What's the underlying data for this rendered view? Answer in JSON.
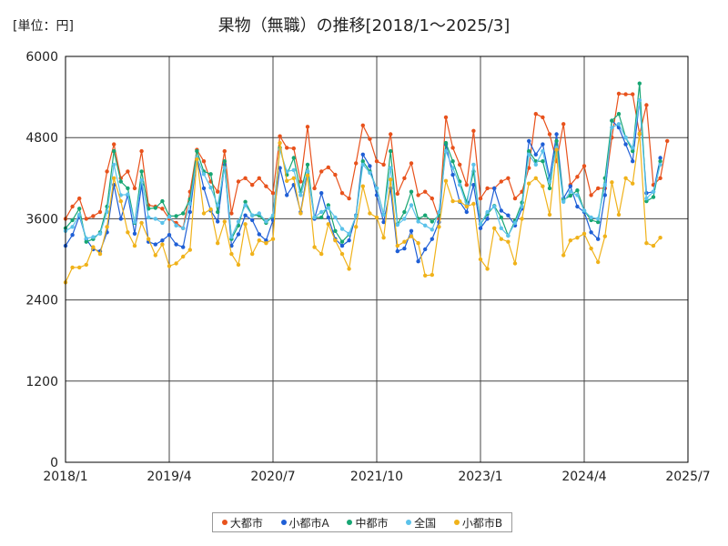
{
  "chart_data": {
    "type": "line",
    "title": "果物（無職）の推移[2018/1～2025/3]",
    "unit_label": "[単位：円]",
    "xlabel": "",
    "ylabel": "",
    "ylim": [
      0,
      6000
    ],
    "yticks": [
      "0",
      "1200",
      "2400",
      "3600",
      "4800",
      "6000"
    ],
    "xticks": [
      "2018/1",
      "2019/4",
      "2020/7",
      "2021/10",
      "2023/1",
      "2024/4",
      "2025/7"
    ],
    "grid": true,
    "legend_position": "bottom",
    "x_start": "2018-01",
    "series": [
      {
        "name": "大都市",
        "color": "#e8521c",
        "values": [
          3600,
          3780,
          3900,
          3600,
          3640,
          3700,
          4300,
          4700,
          4200,
          4300,
          4050,
          4600,
          3800,
          3780,
          3750,
          3600,
          3540,
          3460,
          4000,
          4620,
          4450,
          4150,
          4000,
          4600,
          3680,
          4150,
          4200,
          4100,
          4200,
          4080,
          3980,
          4820,
          4650,
          4640,
          4150,
          4960,
          4050,
          4300,
          4360,
          4250,
          3980,
          3900,
          4420,
          4980,
          4780,
          4450,
          4400,
          4850,
          3970,
          4200,
          4420,
          3950,
          4000,
          3900,
          3600,
          5100,
          4650,
          4400,
          4100,
          4900,
          3900,
          4050,
          4050,
          4150,
          4200,
          3900,
          4000,
          4350,
          5150,
          5100,
          4850,
          4450,
          5000,
          4100,
          4220,
          4380,
          3950,
          4050,
          4050,
          4800,
          5450,
          5440,
          5440,
          4850,
          5280,
          4100,
          4200,
          4750
        ]
      },
      {
        "name": "小都市A",
        "color": "#1f5fd6",
        "values": [
          3200,
          3360,
          3640,
          3300,
          3150,
          3120,
          3400,
          4100,
          3600,
          3950,
          3380,
          4100,
          3260,
          3220,
          3280,
          3360,
          3220,
          3180,
          3700,
          4500,
          4050,
          3720,
          3560,
          4400,
          3200,
          3370,
          3650,
          3580,
          3370,
          3280,
          3580,
          4350,
          3950,
          4100,
          3700,
          4300,
          3600,
          3980,
          3620,
          3300,
          3200,
          3280,
          3650,
          4550,
          4380,
          3950,
          3550,
          4050,
          3120,
          3160,
          3420,
          2970,
          3150,
          3300,
          3550,
          4700,
          4250,
          3850,
          3700,
          4100,
          3460,
          3600,
          4050,
          3720,
          3650,
          3500,
          3750,
          4750,
          4550,
          4700,
          4200,
          4850,
          3900,
          4080,
          3780,
          3700,
          3400,
          3300,
          3950,
          5050,
          4950,
          4700,
          4450,
          5350,
          3980,
          4000,
          4500
        ]
      },
      {
        "name": "中都市",
        "color": "#17a673",
        "values": [
          3460,
          3580,
          3750,
          3260,
          3300,
          3400,
          3780,
          4600,
          4150,
          4050,
          3540,
          4300,
          3750,
          3760,
          3860,
          3640,
          3640,
          3680,
          3890,
          4600,
          4300,
          4260,
          3700,
          4450,
          3300,
          3500,
          3850,
          3650,
          3650,
          3540,
          3640,
          4650,
          4250,
          4500,
          4000,
          4400,
          3620,
          3620,
          3800,
          3420,
          3260,
          3370,
          3640,
          4450,
          4300,
          4050,
          3660,
          4600,
          3520,
          3700,
          4000,
          3600,
          3650,
          3560,
          3650,
          4720,
          4450,
          4150,
          3850,
          4300,
          3520,
          3670,
          3790,
          3620,
          3350,
          3570,
          3840,
          4600,
          4450,
          4450,
          4050,
          4750,
          3880,
          3940,
          4020,
          3720,
          3580,
          3550,
          4200,
          5050,
          5150,
          4800,
          4600,
          5600,
          3860,
          3920,
          4450
        ]
      },
      {
        "name": "全国",
        "color": "#5bc2ea",
        "values": [
          3420,
          3480,
          3660,
          3310,
          3330,
          3380,
          3700,
          4400,
          3950,
          3960,
          3550,
          4170,
          3620,
          3600,
          3540,
          3630,
          3500,
          3460,
          3820,
          4500,
          4260,
          4060,
          3800,
          4350,
          3330,
          3560,
          3800,
          3650,
          3680,
          3560,
          3650,
          4620,
          4300,
          4320,
          3950,
          4300,
          3620,
          3700,
          3760,
          3620,
          3450,
          3380,
          3640,
          4400,
          4280,
          4050,
          3660,
          4350,
          3510,
          3600,
          3800,
          3560,
          3500,
          3440,
          3700,
          4600,
          4350,
          4100,
          3800,
          4400,
          3520,
          3700,
          3780,
          3460,
          3350,
          3540,
          3780,
          4550,
          4400,
          4600,
          4150,
          4650,
          3850,
          4000,
          3950,
          3720,
          3620,
          3600,
          4100,
          4950,
          5000,
          4800,
          4650,
          5350,
          3900,
          4000,
          4400
        ]
      },
      {
        "name": "小都市B",
        "color": "#f0b21a",
        "values": [
          2660,
          2880,
          2880,
          2920,
          3180,
          3080,
          3480,
          4200,
          3860,
          3400,
          3200,
          3540,
          3300,
          3060,
          3220,
          2900,
          2940,
          3040,
          3140,
          4480,
          3680,
          3740,
          3240,
          3560,
          3080,
          2920,
          3520,
          3080,
          3280,
          3240,
          3300,
          4720,
          4160,
          4200,
          3680,
          4240,
          3180,
          3080,
          3520,
          3280,
          3080,
          2860,
          3480,
          4080,
          3680,
          3620,
          3320,
          4180,
          3200,
          3260,
          3340,
          3240,
          2760,
          2770,
          3480,
          4160,
          3860,
          3860,
          3780,
          3820,
          3000,
          2860,
          3460,
          3300,
          3260,
          2940,
          3600,
          4120,
          4200,
          4080,
          3660,
          4620,
          3060,
          3280,
          3320,
          3380,
          3160,
          2960,
          3340,
          4140,
          3660,
          4200,
          4120,
          4860,
          3240,
          3200,
          3320
        ]
      }
    ]
  }
}
